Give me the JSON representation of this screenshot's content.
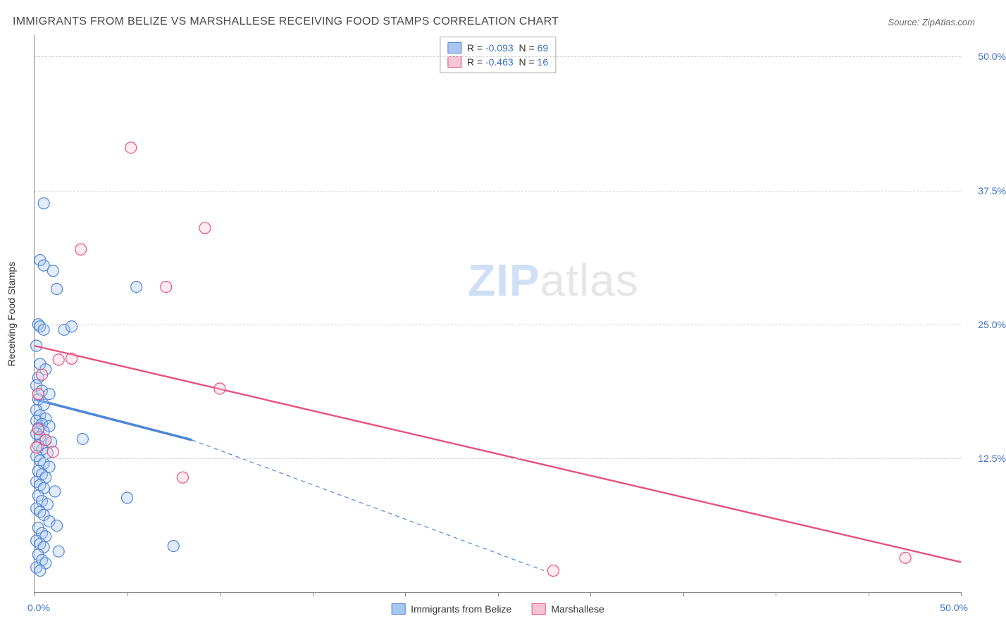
{
  "title": "IMMIGRANTS FROM BELIZE VS MARSHALLESE RECEIVING FOOD STAMPS CORRELATION CHART",
  "source_prefix": "Source: ",
  "source_name": "ZipAtlas.com",
  "ylabel": "Receiving Food Stamps",
  "watermark_a": "ZIP",
  "watermark_b": "atlas",
  "chart": {
    "type": "scatter-with-trendlines",
    "background_color": "#ffffff",
    "grid_color": "#d0d0d0",
    "axis_color": "#888888",
    "tick_color": "#3b70c4",
    "label_color": "#333333",
    "title_fontsize": 16,
    "tick_fontsize": 14,
    "label_fontsize": 14,
    "xlim": [
      0,
      50
    ],
    "ylim": [
      0,
      52
    ],
    "xtick_positions": [
      0,
      5,
      10,
      15,
      20,
      25,
      30,
      35,
      40,
      45,
      50
    ],
    "xtick_labels": {
      "0": "0.0%",
      "50": "50.0%"
    },
    "ytick_positions": [
      12.5,
      25.0,
      37.5,
      50.0
    ],
    "ytick_labels": [
      "12.5%",
      "25.0%",
      "37.5%",
      "50.0%"
    ],
    "marker_radius": 8,
    "marker_stroke_width": 1.2,
    "marker_fill_opacity": 0.35,
    "series": [
      {
        "id": "belize",
        "label": "Immigrants from Belize",
        "color_fill": "#a9c7ee",
        "color_stroke": "#4f86d6",
        "R": -0.093,
        "N": 69,
        "trend": {
          "p1": [
            0,
            18.0
          ],
          "p2_solid": [
            8.5,
            14.2
          ],
          "p2_dash": [
            27.5,
            2.0
          ],
          "solid_width": 3.5,
          "dash_width": 1.2,
          "dash_pattern": "6 5"
        },
        "points": [
          [
            0.5,
            36.3
          ],
          [
            0.3,
            31.0
          ],
          [
            0.5,
            30.5
          ],
          [
            1.0,
            30.0
          ],
          [
            1.2,
            28.3
          ],
          [
            0.2,
            25.0
          ],
          [
            0.3,
            24.8
          ],
          [
            0.5,
            24.5
          ],
          [
            1.6,
            24.5
          ],
          [
            2.0,
            24.8
          ],
          [
            5.5,
            28.5
          ],
          [
            0.1,
            23.0
          ],
          [
            0.3,
            21.3
          ],
          [
            0.6,
            20.8
          ],
          [
            0.2,
            20.0
          ],
          [
            0.1,
            19.3
          ],
          [
            0.4,
            18.8
          ],
          [
            0.8,
            18.5
          ],
          [
            0.2,
            18.0
          ],
          [
            0.5,
            17.5
          ],
          [
            0.1,
            17.0
          ],
          [
            0.3,
            16.5
          ],
          [
            0.6,
            16.2
          ],
          [
            0.1,
            16.0
          ],
          [
            0.4,
            15.7
          ],
          [
            0.8,
            15.5
          ],
          [
            0.2,
            15.3
          ],
          [
            0.5,
            15.0
          ],
          [
            0.1,
            14.8
          ],
          [
            0.3,
            14.5
          ],
          [
            0.6,
            14.2
          ],
          [
            0.9,
            14.0
          ],
          [
            2.6,
            14.3
          ],
          [
            0.2,
            13.7
          ],
          [
            0.4,
            13.3
          ],
          [
            0.7,
            13.0
          ],
          [
            0.1,
            12.7
          ],
          [
            0.3,
            12.3
          ],
          [
            0.5,
            12.0
          ],
          [
            0.8,
            11.7
          ],
          [
            0.2,
            11.3
          ],
          [
            0.4,
            11.0
          ],
          [
            0.6,
            10.7
          ],
          [
            0.1,
            10.3
          ],
          [
            0.3,
            10.0
          ],
          [
            0.5,
            9.7
          ],
          [
            1.1,
            9.4
          ],
          [
            0.2,
            9.0
          ],
          [
            5.0,
            8.8
          ],
          [
            0.4,
            8.5
          ],
          [
            0.7,
            8.2
          ],
          [
            0.1,
            7.8
          ],
          [
            0.3,
            7.5
          ],
          [
            0.5,
            7.2
          ],
          [
            0.8,
            6.6
          ],
          [
            1.2,
            6.2
          ],
          [
            0.2,
            6.0
          ],
          [
            0.4,
            5.5
          ],
          [
            0.6,
            5.2
          ],
          [
            0.1,
            4.8
          ],
          [
            0.3,
            4.5
          ],
          [
            0.5,
            4.2
          ],
          [
            7.5,
            4.3
          ],
          [
            1.3,
            3.8
          ],
          [
            0.2,
            3.5
          ],
          [
            0.4,
            3.0
          ],
          [
            0.6,
            2.7
          ],
          [
            0.1,
            2.3
          ],
          [
            0.3,
            2.0
          ]
        ]
      },
      {
        "id": "marshallese",
        "label": "Marshallese",
        "color_fill": "#f6c5d3",
        "color_stroke": "#e6527e",
        "R": -0.463,
        "N": 16,
        "trend": {
          "p1": [
            0,
            23.0
          ],
          "p2_solid": [
            50,
            2.8
          ],
          "solid_width": 2.4
        },
        "points": [
          [
            5.2,
            41.5
          ],
          [
            9.2,
            34.0
          ],
          [
            2.5,
            32.0
          ],
          [
            7.1,
            28.5
          ],
          [
            1.3,
            21.7
          ],
          [
            2.0,
            21.8
          ],
          [
            0.4,
            20.3
          ],
          [
            10.0,
            19.0
          ],
          [
            0.2,
            15.2
          ],
          [
            0.6,
            14.2
          ],
          [
            0.1,
            13.5
          ],
          [
            1.0,
            13.1
          ],
          [
            8.0,
            10.7
          ],
          [
            28.0,
            2.0
          ],
          [
            47.0,
            3.2
          ],
          [
            0.2,
            18.5
          ]
        ]
      }
    ]
  }
}
